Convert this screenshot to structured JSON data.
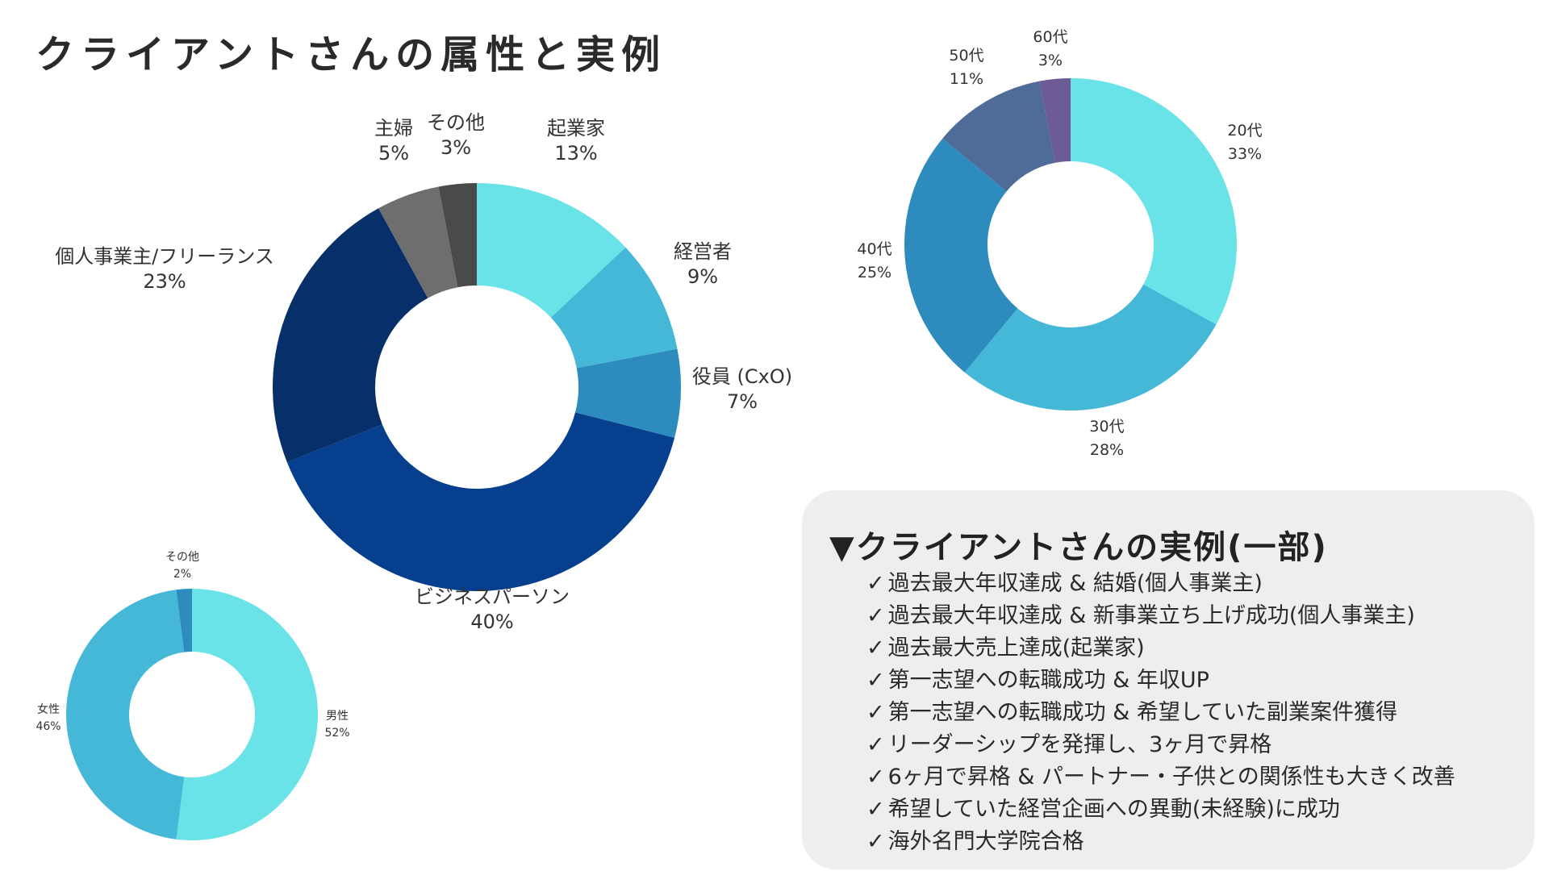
{
  "page": {
    "title": "クライアントさんの属性と実例"
  },
  "chart_data": [
    {
      "id": "occupation",
      "type": "pie",
      "categories": [
        "起業家",
        "経営者",
        "役員 (CxO)",
        "ビジネスパーソン",
        "個人事業主/フリーランス",
        "主婦",
        "その他"
      ],
      "values": [
        13,
        9,
        7,
        40,
        23,
        5,
        3
      ],
      "labels": [
        "13%",
        "9%",
        "7%",
        "40%",
        "23%",
        "5%",
        "3%"
      ],
      "colors": [
        "#6ae3e8",
        "#45b8d8",
        "#2e8bbd",
        "#063f8e",
        "#072f69",
        "#6e6e6e",
        "#4a4a4a"
      ]
    },
    {
      "id": "age",
      "type": "pie",
      "categories": [
        "20代",
        "30代",
        "40代",
        "50代",
        "60代"
      ],
      "values": [
        33,
        28,
        25,
        11,
        3
      ],
      "labels": [
        "33%",
        "28%",
        "25%",
        "11%",
        "3%"
      ],
      "colors": [
        "#6ae3e8",
        "#45b8d8",
        "#2e8bbd",
        "#4f6c99",
        "#6e5a96"
      ]
    },
    {
      "id": "gender",
      "type": "pie",
      "categories": [
        "男性",
        "女性",
        "その他"
      ],
      "values": [
        52,
        46,
        2
      ],
      "labels": [
        "52%",
        "46%",
        "2%"
      ],
      "colors": [
        "#6ae3e8",
        "#45b8d8",
        "#2e8bbd"
      ]
    }
  ],
  "examples": {
    "title": "▼クライアントさんの実例(一部)",
    "check_mark": "✓",
    "items": [
      "過去最大年収達成 & 結婚(個人事業主)",
      "過去最大年収達成 & 新事業立ち上げ成功(個人事業主)",
      "過去最大売上達成(起業家)",
      "第一志望への転職成功 & 年収UP",
      "第一志望への転職成功 & 希望していた副業案件獲得",
      "リーダーシップを発揮し、3ヶ月で昇格",
      "6ヶ月で昇格 & パートナー・子供との関係性も大きく改善",
      "希望していた経営企画への異動(未経験)に成功",
      "海外名門大学院合格"
    ]
  }
}
